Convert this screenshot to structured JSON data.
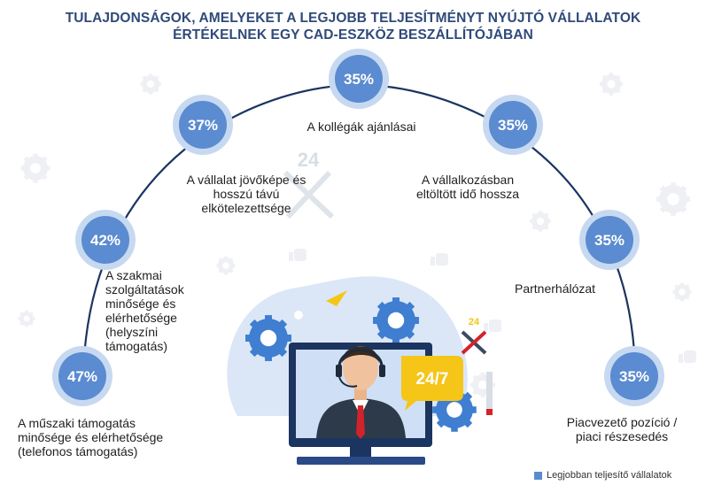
{
  "title_line1": "TULAJDONSÁGOK, AMELYEKET A LEGJOBB TELJESÍTMÉNYT NYÚJTÓ VÁLLALATOK",
  "title_line2": "ÉRTÉKELNEK EGY CAD-ESZKÖZ BESZÁLLÍTÓJÁBAN",
  "chart_data": {
    "type": "bar",
    "title": "TULAJDONSÁGOK, AMELYEKET A LEGJOBB TELJESÍTMÉNYT NYÚJTÓ VÁLLALATOK ÉRTÉKELNEK EGY CAD-ESZKÖZ BESZÁLLÍTÓJÁBAN",
    "categories": [
      "A műszaki támogatás minősége és elérhetősége (telefonos támogatás)",
      "A szakmai szolgáltatások minősége és elérhetősége (helyszíni támogatás)",
      "A vállalat jövőképe és hosszú távú elkötelezettsége",
      "A kollégák ajánlásai",
      "A vállalkozásban eltöltött idő hossza",
      "Partnerhálózat",
      "Piacvezető pozíció / piaci részesedés"
    ],
    "label_lines": [
      [
        "A műszaki támogatás",
        "minősége és elérhetősége",
        "(telefonos támogatás)"
      ],
      [
        "A szakmai",
        "szolgáltatások",
        "minősége és",
        "elérhetősége",
        "(helyszíni",
        "támogatás)"
      ],
      [
        "A vállalat jövőképe és",
        "hosszú távú",
        "elkötelezettsége"
      ],
      [
        "A kollégák ajánlásai"
      ],
      [
        "A vállalkozásban",
        "eltöltött idő hossza"
      ],
      [
        "Partnerhálózat"
      ],
      [
        "Piacvezető pozíció /",
        "piaci részesedés"
      ]
    ],
    "values": [
      47,
      42,
      37,
      35,
      35,
      35,
      35
    ],
    "value_labels": [
      "47%",
      "42%",
      "37%",
      "35%",
      "35%",
      "35%",
      "35%"
    ],
    "series": [
      {
        "name": "Legjobban teljesítő vállalatok",
        "values": [
          47,
          42,
          37,
          35,
          35,
          35,
          35
        ]
      }
    ],
    "legend": "bottom-right",
    "grid": false
  },
  "legend_label": "Legjobban teljesítő vállalatok",
  "illustration": {
    "badge_text": "24/7",
    "tool_text": "24",
    "circle_color": "#5b8bd0",
    "ring_color": "#c7d9f1",
    "arc_color": "#1b3560",
    "badge_color": "#f5c518"
  }
}
